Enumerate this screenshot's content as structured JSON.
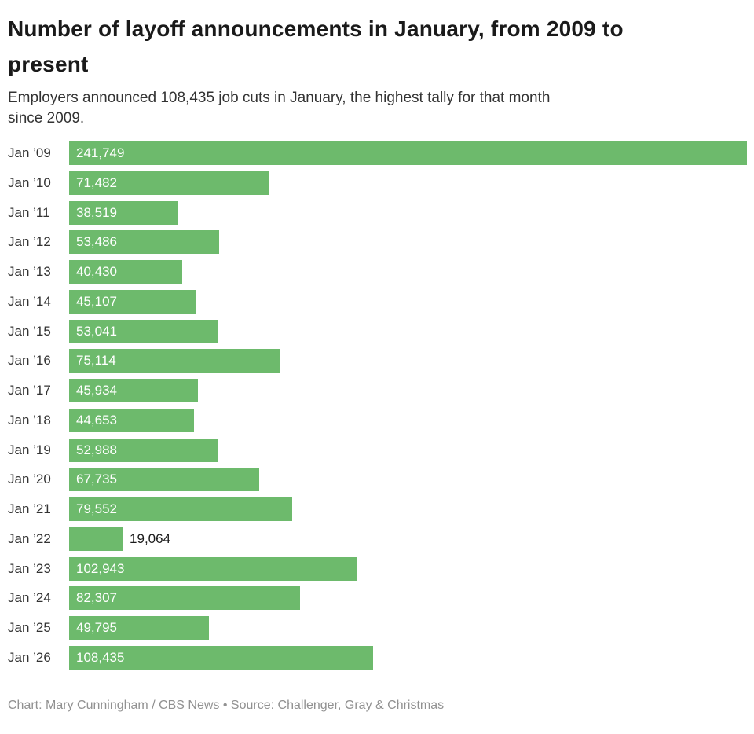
{
  "header": {
    "title_lines": [
      "Number of layoff announcements in January, from 2009 to",
      "present"
    ],
    "subtitle_lines": [
      "Employers announced 108,435 job cuts in January, the highest tally for that month",
      "since 2009."
    ]
  },
  "chart_data": {
    "type": "bar",
    "orientation": "horizontal",
    "title": "Number of layoff announcements in January, from 2009 to present",
    "subtitle": "Employers announced 108,435 job cuts in January, the highest tally for that month since 2009.",
    "categories": [
      "Jan ’09",
      "Jan ’10",
      "Jan ’11",
      "Jan ’12",
      "Jan ’13",
      "Jan ’14",
      "Jan ’15",
      "Jan ’16",
      "Jan ’17",
      "Jan ’18",
      "Jan ’19",
      "Jan ’20",
      "Jan ’21",
      "Jan ’22",
      "Jan ’23",
      "Jan ’24",
      "Jan ’25",
      "Jan ’26"
    ],
    "values": [
      241749,
      71482,
      38519,
      53486,
      40430,
      45107,
      53041,
      75114,
      45934,
      44653,
      52988,
      67735,
      79552,
      19064,
      102943,
      82307,
      49795,
      108435
    ],
    "value_labels": [
      "241,749",
      "71,482",
      "38,519",
      "53,486",
      "40,430",
      "45,107",
      "53,041",
      "75,114",
      "45,934",
      "44,653",
      "52,988",
      "67,735",
      "79,552",
      "19,064",
      "102,943",
      "82,307",
      "49,795",
      "108,435"
    ],
    "xlabel": "",
    "ylabel": "",
    "xlim": [
      0,
      241749
    ],
    "grid": false,
    "legend": "none",
    "bar_color": "#6dba6c",
    "value_label_inside_color": "#ffffff",
    "value_label_outside_color": "#1a1a1a",
    "outside_label_threshold_fraction": 0.1
  },
  "footer": {
    "credit": "Chart: Mary Cunningham / CBS News • Source: Challenger, Gray & Christmas"
  }
}
